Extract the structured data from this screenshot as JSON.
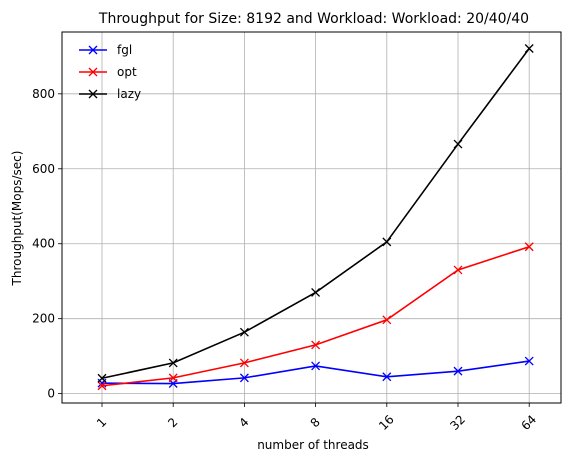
{
  "chart_data": {
    "type": "line",
    "title": "Throughput for Size: 8192 and Workload: Workload: 20/40/40",
    "xlabel": "number of threads",
    "ylabel": "Throughput(Mops/sec)",
    "categories": [
      "1",
      "2",
      "4",
      "8",
      "16",
      "32",
      "64"
    ],
    "yticks": [
      "0",
      "200",
      "400",
      "600",
      "800"
    ],
    "ylim": [
      -25,
      965
    ],
    "grid": true,
    "legend_position": "top-left",
    "xtick_rotation": "45 degrees",
    "marker": "x",
    "series": [
      {
        "name": "fgl",
        "color": "#0000ff",
        "values": [
          28,
          27,
          42,
          74,
          45,
          60,
          87
        ]
      },
      {
        "name": "opt",
        "color": "#ff0000",
        "values": [
          21,
          42,
          82,
          130,
          197,
          330,
          392
        ]
      },
      {
        "name": "lazy",
        "color": "#000000",
        "values": [
          41,
          82,
          164,
          270,
          405,
          666,
          921
        ]
      }
    ]
  }
}
